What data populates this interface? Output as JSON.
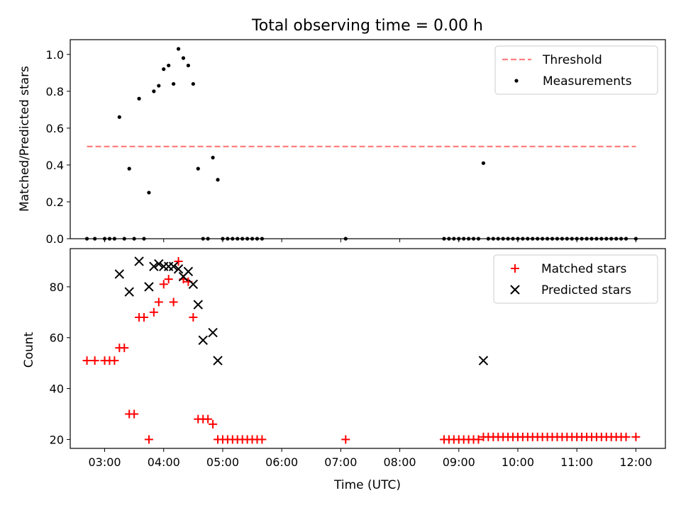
{
  "chart_data": [
    {
      "type": "scatter",
      "title": "Total observing time = 0.00 h",
      "xlabel": "",
      "ylabel": "Matched/Predicted stars",
      "xlim": [
        "02:25",
        "12:30"
      ],
      "ylim": [
        0.0,
        1.08
      ],
      "yticks": [
        0.0,
        0.2,
        0.4,
        0.6,
        0.8,
        1.0
      ],
      "ytick_labels": [
        "0.0",
        "0.2",
        "0.4",
        "0.6",
        "0.8",
        "1.0"
      ],
      "legend": {
        "position": "top-right",
        "entries": [
          "Threshold",
          "Measurements"
        ]
      },
      "series": [
        {
          "name": "Threshold",
          "style": "dashed-line",
          "color": "#ff7f7f",
          "x": [
            "02:42",
            "12:00"
          ],
          "y": [
            0.5,
            0.5
          ]
        },
        {
          "name": "Measurements",
          "style": "dot",
          "color": "#000000",
          "x": [
            "02:42",
            "02:50",
            "03:00",
            "03:05",
            "03:10",
            "03:15",
            "03:20",
            "03:25",
            "03:30",
            "03:35",
            "03:40",
            "03:45",
            "03:50",
            "03:55",
            "04:00",
            "04:05",
            "04:10",
            "04:15",
            "04:20",
            "04:25",
            "04:30",
            "04:35",
            "04:40",
            "04:45",
            "04:50",
            "04:55",
            "05:00",
            "05:05",
            "05:10",
            "05:15",
            "05:20",
            "05:25",
            "05:30",
            "05:35",
            "05:40",
            "07:05",
            "08:45",
            "08:50",
            "08:55",
            "09:00",
            "09:05",
            "09:10",
            "09:15",
            "09:20",
            "09:25",
            "09:30",
            "09:35",
            "09:40",
            "09:45",
            "09:50",
            "09:55",
            "10:00",
            "10:05",
            "10:10",
            "10:15",
            "10:20",
            "10:25",
            "10:30",
            "10:35",
            "10:40",
            "10:45",
            "10:50",
            "10:55",
            "11:00",
            "11:05",
            "11:10",
            "11:15",
            "11:20",
            "11:25",
            "11:30",
            "11:35",
            "11:40",
            "11:45",
            "11:50",
            "12:00"
          ],
          "y": [
            0.0,
            0.0,
            0.0,
            0.0,
            0.0,
            0.66,
            0.0,
            0.38,
            0.0,
            0.76,
            0.0,
            0.25,
            0.8,
            0.83,
            0.92,
            0.94,
            0.84,
            1.03,
            0.98,
            0.94,
            0.84,
            0.38,
            0.0,
            0.0,
            0.44,
            0.32,
            0.0,
            0.0,
            0.0,
            0.0,
            0.0,
            0.0,
            0.0,
            0.0,
            0.0,
            0.0,
            0.0,
            0.0,
            0.0,
            0.0,
            0.0,
            0.0,
            0.0,
            0.0,
            0.41,
            0.0,
            0.0,
            0.0,
            0.0,
            0.0,
            0.0,
            0.0,
            0.0,
            0.0,
            0.0,
            0.0,
            0.0,
            0.0,
            0.0,
            0.0,
            0.0,
            0.0,
            0.0,
            0.0,
            0.0,
            0.0,
            0.0,
            0.0,
            0.0,
            0.0,
            0.0,
            0.0,
            0.0,
            0.0,
            0.0
          ]
        }
      ]
    },
    {
      "type": "scatter",
      "title": "",
      "xlabel": "Time (UTC)",
      "ylabel": "Count",
      "xlim": [
        "02:25",
        "12:30"
      ],
      "ylim": [
        16.5,
        95
      ],
      "xticks": [
        "03:00",
        "04:00",
        "05:00",
        "06:00",
        "07:00",
        "08:00",
        "09:00",
        "10:00",
        "11:00",
        "12:00"
      ],
      "yticks": [
        20,
        40,
        60,
        80
      ],
      "ytick_labels": [
        "20",
        "40",
        "60",
        "80"
      ],
      "legend": {
        "position": "top-right",
        "entries": [
          "Matched stars",
          "Predicted stars"
        ]
      },
      "series": [
        {
          "name": "Matched stars",
          "marker": "plus",
          "color": "#ff0000",
          "x": [
            "02:42",
            "02:50",
            "03:00",
            "03:05",
            "03:10",
            "03:15",
            "03:20",
            "03:25",
            "03:30",
            "03:35",
            "03:40",
            "03:45",
            "03:50",
            "03:55",
            "04:00",
            "04:05",
            "04:10",
            "04:15",
            "04:20",
            "04:25",
            "04:30",
            "04:35",
            "04:40",
            "04:45",
            "04:50",
            "04:55",
            "05:00",
            "05:05",
            "05:10",
            "05:15",
            "05:20",
            "05:25",
            "05:30",
            "05:35",
            "05:40",
            "07:05",
            "08:45",
            "08:50",
            "08:55",
            "09:00",
            "09:05",
            "09:10",
            "09:15",
            "09:20",
            "09:25",
            "09:30",
            "09:35",
            "09:40",
            "09:45",
            "09:50",
            "09:55",
            "10:00",
            "10:05",
            "10:10",
            "10:15",
            "10:20",
            "10:25",
            "10:30",
            "10:35",
            "10:40",
            "10:45",
            "10:50",
            "10:55",
            "11:00",
            "11:05",
            "11:10",
            "11:15",
            "11:20",
            "11:25",
            "11:30",
            "11:35",
            "11:40",
            "11:45",
            "11:50",
            "12:00"
          ],
          "y": [
            51,
            51,
            51,
            51,
            51,
            56,
            56,
            30,
            30,
            68,
            68,
            20,
            70,
            74,
            81,
            83,
            74,
            90,
            83,
            82,
            68,
            28,
            28,
            28,
            26,
            20,
            20,
            20,
            20,
            20,
            20,
            20,
            20,
            20,
            20,
            20,
            20,
            20,
            20,
            20,
            20,
            20,
            20,
            20,
            21,
            21,
            21,
            21,
            21,
            21,
            21,
            21,
            21,
            21,
            21,
            21,
            21,
            21,
            21,
            21,
            21,
            21,
            21,
            21,
            21,
            21,
            21,
            21,
            21,
            21,
            21,
            21,
            21,
            21,
            21
          ]
        },
        {
          "name": "Predicted stars",
          "marker": "x",
          "color": "#000000",
          "x": [
            "03:15",
            "03:25",
            "03:35",
            "03:45",
            "03:50",
            "03:55",
            "04:00",
            "04:05",
            "04:10",
            "04:15",
            "04:20",
            "04:25",
            "04:30",
            "04:35",
            "04:40",
            "04:50",
            "04:55",
            "09:25"
          ],
          "y": [
            85,
            78,
            90,
            80,
            88,
            89,
            88,
            88,
            88,
            87,
            84,
            86,
            81,
            73,
            59,
            62,
            51,
            51
          ]
        }
      ]
    }
  ]
}
